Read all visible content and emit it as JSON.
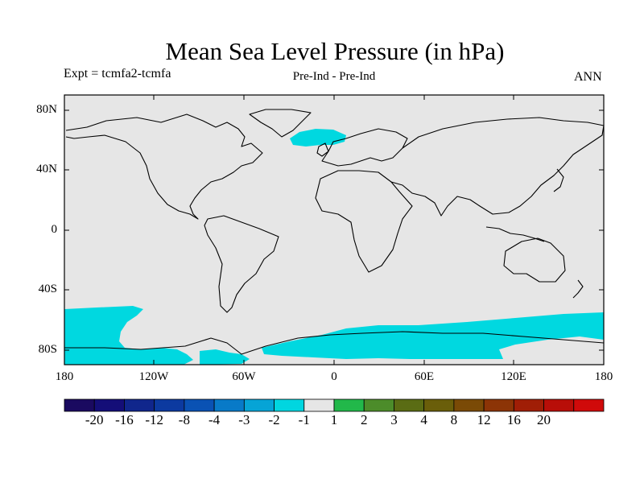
{
  "title": "Mean Sea Level Pressure (in hPa)",
  "subtitle_left": "Expt = tcmfa2-tcmfa",
  "subtitle_center": "Pre-Ind - Pre-Ind",
  "subtitle_right": "ANN",
  "map": {
    "projection": "cylindrical-equidistant",
    "lon_range": [
      -180,
      180
    ],
    "lat_range": [
      -90,
      90
    ],
    "background_value_range": "-1 to 1",
    "ocean_fill_color": "#e6e6e6",
    "coastline_color": "#000000"
  },
  "lat_ticks": [
    {
      "label": "80N"
    },
    {
      "label": "40N"
    },
    {
      "label": "0"
    },
    {
      "label": "40S"
    },
    {
      "label": "80S"
    }
  ],
  "lon_ticks": [
    {
      "label": "180"
    },
    {
      "label": "120W"
    },
    {
      "label": "60W"
    },
    {
      "label": "0"
    },
    {
      "label": "60E"
    },
    {
      "label": "120E"
    },
    {
      "label": "180"
    }
  ],
  "shaded_regions": [
    {
      "name": "southern-ocean-band",
      "range": "-2 to -1",
      "color": "#00d8e0"
    },
    {
      "name": "greenland-norwegian-sea-patch",
      "range": "-2 to -1",
      "color": "#00d8e0"
    }
  ],
  "colorbar": {
    "colors": [
      "#1a0a60",
      "#140e78",
      "#10268c",
      "#0c3aa0",
      "#0a52b4",
      "#087ac8",
      "#06a4d6",
      "#00d6e0",
      "#e6e6e6",
      "#22b84a",
      "#4c8c2a",
      "#5a6c14",
      "#6a5e0a",
      "#7a4a06",
      "#8c3406",
      "#a01e06",
      "#b80e08",
      "#d00a0a"
    ],
    "labels": [
      "-20",
      "-16",
      "-12",
      "-8",
      "-4",
      "-3",
      "-2",
      "-1",
      "1",
      "2",
      "3",
      "4",
      "8",
      "12",
      "16",
      "20"
    ]
  }
}
